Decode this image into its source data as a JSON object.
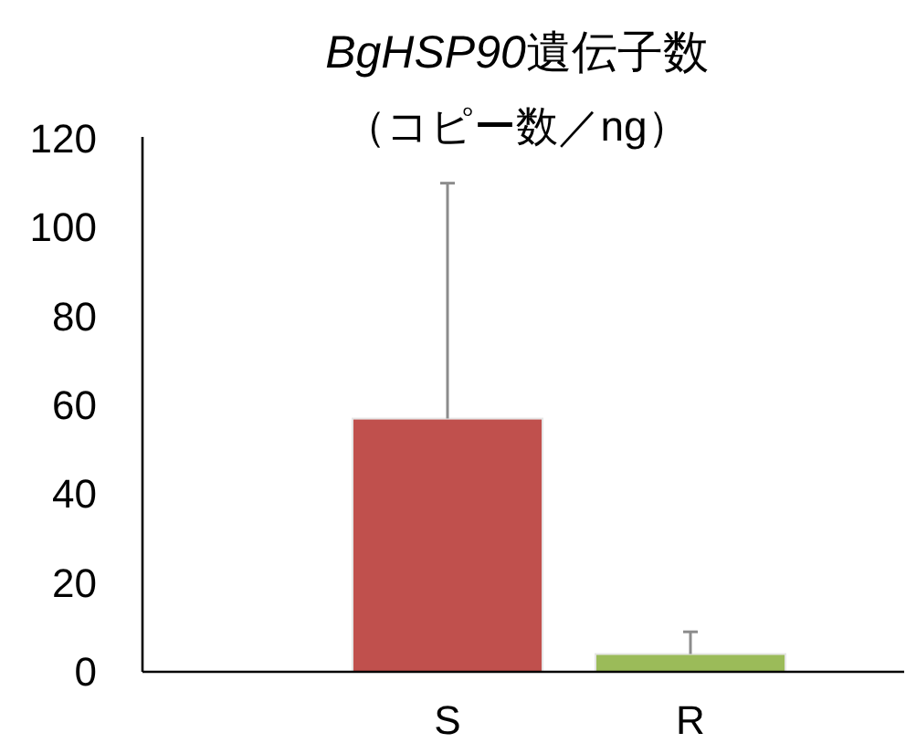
{
  "chart_data": {
    "type": "bar",
    "title": "BgHSP90遺伝子数",
    "subtitle": "（コピー数／ng）",
    "categories": [
      null,
      "S",
      "R"
    ],
    "values": [
      null,
      57,
      4
    ],
    "errors": [
      null,
      53,
      5
    ],
    "colors": [
      null,
      "#c0504d",
      "#9bbb59"
    ],
    "ylim": [
      0,
      120
    ],
    "yticks": [
      0,
      20,
      40,
      60,
      80,
      100,
      120
    ]
  }
}
